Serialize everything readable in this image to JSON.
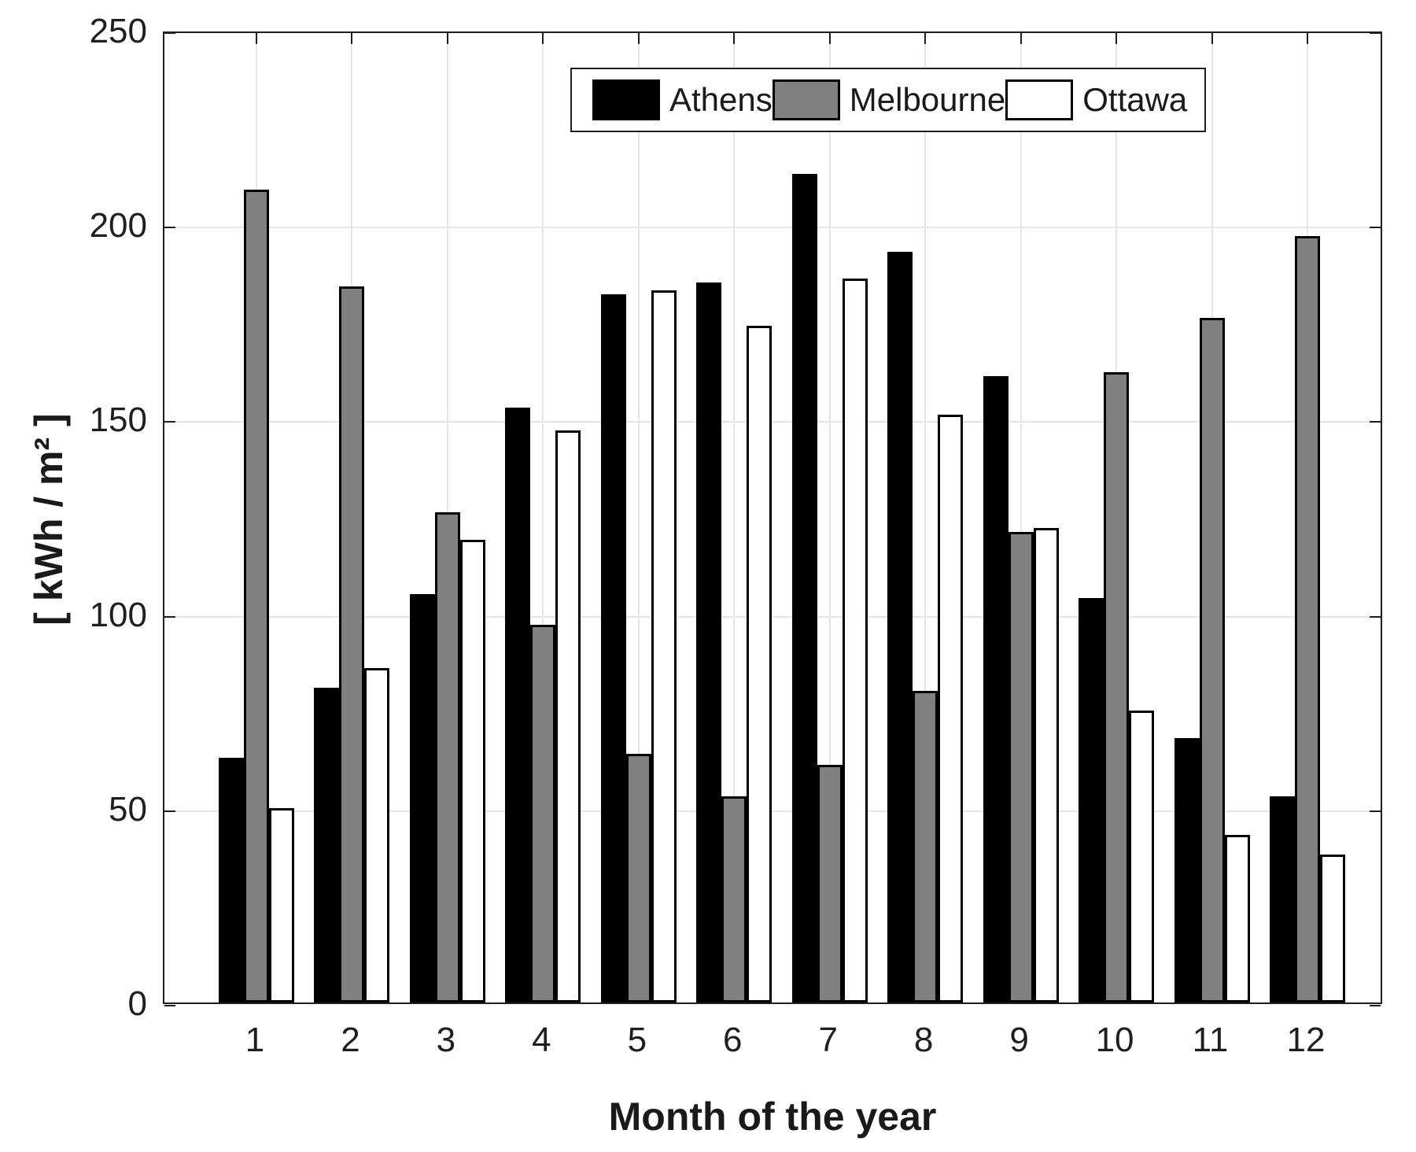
{
  "chart_data": {
    "type": "bar",
    "title": "",
    "xlabel": "Month of the year",
    "ylabel": "[ kWh / m² ]",
    "categories": [
      "1",
      "2",
      "3",
      "4",
      "5",
      "6",
      "7",
      "8",
      "9",
      "10",
      "11",
      "12"
    ],
    "series": [
      {
        "name": "Athens",
        "color": "#000000",
        "values": [
          63,
          81,
          105,
          153,
          182,
          185,
          213,
          193,
          161,
          104,
          68,
          53
        ]
      },
      {
        "name": "Melbourne",
        "color": "#808080",
        "values": [
          209,
          184,
          126,
          97,
          64,
          53,
          61,
          80,
          121,
          162,
          176,
          197
        ]
      },
      {
        "name": "Ottawa",
        "color": "#ffffff",
        "values": [
          50,
          86,
          119,
          147,
          183,
          174,
          186,
          151,
          122,
          75,
          43,
          38
        ]
      }
    ],
    "ylim": [
      0,
      250
    ],
    "yticks": [
      0,
      50,
      100,
      150,
      200,
      250
    ],
    "grid": true,
    "legend_position": "top-inside",
    "bar_edge_color": "#000000",
    "gridline_color": "#e6e6e6",
    "axis_color": "#1f1f1f"
  }
}
